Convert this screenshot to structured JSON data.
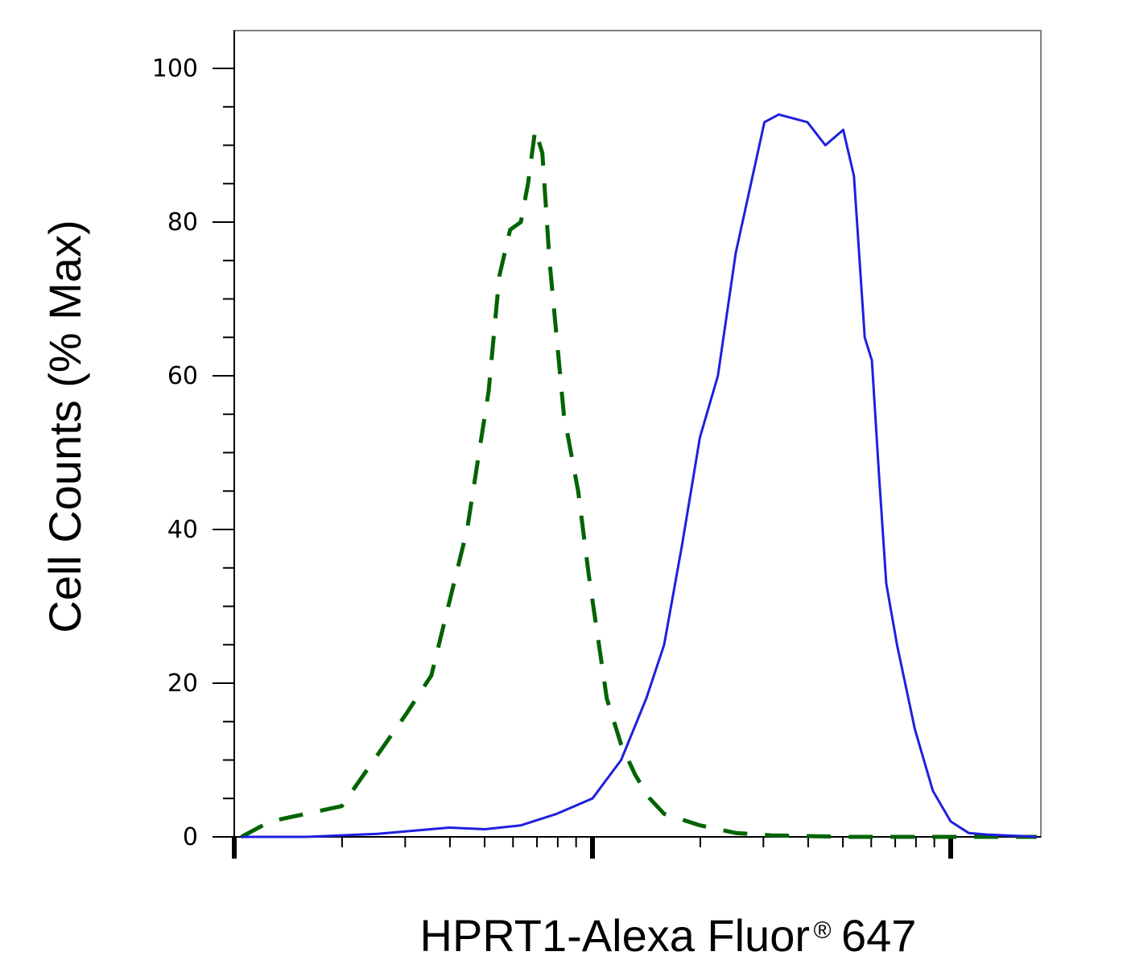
{
  "chart_data": {
    "type": "line",
    "xlabel": "HPRT1-Alexa Fluor",
    "xlabel_mark": "®",
    "xlabel_suffix": "647",
    "ylabel": "Cell Counts (% Max)",
    "ylim": [
      0,
      100
    ],
    "yticks": [
      "0",
      "20",
      "40",
      "60",
      "80",
      "100"
    ],
    "x_scale": "log",
    "x_range_decades": [
      0,
      2.25
    ],
    "grid": false,
    "series": [
      {
        "style": "dashed",
        "color": "#006400",
        "x": [
          0.02,
          0.1,
          0.2,
          0.3,
          0.36,
          0.48,
          0.55,
          0.65,
          0.71,
          0.74,
          0.77,
          0.8,
          0.82,
          0.84,
          0.86,
          0.88,
          0.92,
          0.96,
          0.99,
          1.04,
          1.08,
          1.12,
          1.16,
          1.2,
          1.3,
          1.4,
          1.5,
          1.6,
          1.7,
          1.8,
          1.9,
          2.0,
          2.1,
          2.2,
          2.24
        ],
        "y": [
          0,
          2,
          3,
          4,
          8,
          16,
          21,
          40,
          58,
          73,
          79,
          80,
          85,
          92,
          89,
          75,
          55,
          45,
          34,
          18,
          12,
          8,
          5,
          3,
          1.5,
          0.5,
          0.2,
          0.1,
          0,
          0,
          0,
          0,
          0,
          0,
          0
        ]
      },
      {
        "style": "solid",
        "color": "#1f1fe0",
        "x": [
          0.02,
          0.2,
          0.3,
          0.4,
          0.5,
          0.6,
          0.7,
          0.8,
          0.9,
          1.0,
          1.08,
          1.15,
          1.2,
          1.25,
          1.3,
          1.35,
          1.4,
          1.48,
          1.52,
          1.6,
          1.65,
          1.7,
          1.73,
          1.76,
          1.78,
          1.8,
          1.82,
          1.85,
          1.9,
          1.95,
          2.0,
          2.05,
          2.1,
          2.15,
          2.2,
          2.24
        ],
        "y": [
          0,
          0,
          0.2,
          0.4,
          0.8,
          1.2,
          1.0,
          1.5,
          3.0,
          5.0,
          10,
          18,
          25,
          38,
          52,
          60,
          76,
          93,
          94,
          93,
          90,
          92,
          86,
          65,
          62,
          47,
          33,
          25,
          14,
          6,
          2,
          0.5,
          0.3,
          0.2,
          0.1,
          0
        ]
      }
    ]
  }
}
